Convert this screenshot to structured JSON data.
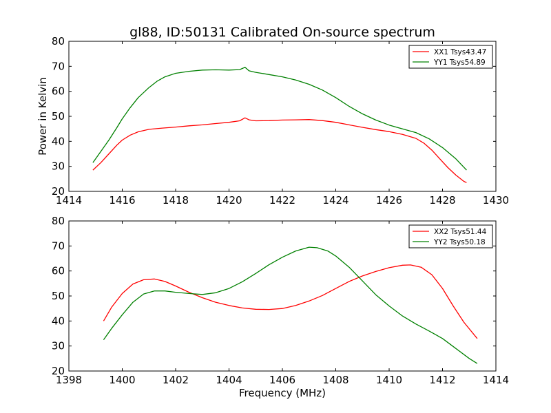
{
  "figure": {
    "title": "gl88, ID:50131 Calibrated On-source spectrum"
  },
  "chart_data": [
    {
      "type": "line",
      "title": "gl88, ID:50131 Calibrated On-source spectrum",
      "xlabel": "",
      "ylabel": "Power in Kelvin",
      "xlim": [
        1414,
        1430
      ],
      "ylim": [
        20,
        80
      ],
      "xticks": [
        1414,
        1416,
        1418,
        1420,
        1422,
        1424,
        1426,
        1428,
        1430
      ],
      "yticks": [
        20,
        30,
        40,
        50,
        60,
        70,
        80
      ],
      "grid": false,
      "legend_position": "upper right",
      "series": [
        {
          "name": "XX1 Tsys43.47",
          "color": "#ff0000",
          "x": [
            1414.9,
            1415.2,
            1415.5,
            1415.8,
            1416.0,
            1416.3,
            1416.6,
            1417.0,
            1417.5,
            1418.0,
            1418.5,
            1419.0,
            1419.5,
            1420.0,
            1420.4,
            1420.6,
            1420.75,
            1421.0,
            1421.5,
            1422.0,
            1422.5,
            1423.0,
            1423.5,
            1424.0,
            1424.5,
            1425.0,
            1425.5,
            1426.0,
            1426.5,
            1427.0,
            1427.3,
            1427.6,
            1427.9,
            1428.2,
            1428.5,
            1428.8,
            1428.9
          ],
          "y": [
            28.5,
            31.5,
            35.0,
            38.5,
            40.5,
            42.5,
            43.8,
            44.8,
            45.3,
            45.7,
            46.2,
            46.6,
            47.1,
            47.6,
            48.2,
            49.4,
            48.6,
            48.2,
            48.3,
            48.5,
            48.6,
            48.7,
            48.3,
            47.6,
            46.6,
            45.6,
            44.7,
            43.9,
            42.8,
            41.2,
            39.3,
            36.5,
            33.0,
            29.5,
            26.5,
            24.0,
            23.5
          ]
        },
        {
          "name": "YY1 Tsys54.89",
          "color": "#008000",
          "x": [
            1414.9,
            1415.2,
            1415.5,
            1415.8,
            1416.0,
            1416.3,
            1416.6,
            1417.0,
            1417.3,
            1417.6,
            1418.0,
            1418.5,
            1419.0,
            1419.5,
            1420.0,
            1420.4,
            1420.6,
            1420.75,
            1421.0,
            1421.5,
            1422.0,
            1422.5,
            1423.0,
            1423.5,
            1424.0,
            1424.5,
            1425.0,
            1425.5,
            1426.0,
            1426.5,
            1427.0,
            1427.5,
            1428.0,
            1428.5,
            1428.9
          ],
          "y": [
            31.5,
            36.0,
            40.5,
            45.5,
            49.0,
            53.5,
            57.5,
            61.5,
            64.0,
            65.8,
            67.2,
            68.0,
            68.5,
            68.6,
            68.5,
            68.7,
            69.6,
            68.2,
            67.6,
            66.7,
            65.8,
            64.5,
            62.8,
            60.5,
            57.5,
            54.0,
            51.0,
            48.5,
            46.5,
            45.0,
            43.5,
            41.0,
            37.5,
            33.0,
            28.5
          ]
        }
      ]
    },
    {
      "type": "line",
      "title": "",
      "xlabel": "Frequency (MHz)",
      "ylabel": "",
      "xlim": [
        1398,
        1414
      ],
      "ylim": [
        20,
        80
      ],
      "xticks": [
        1398,
        1400,
        1402,
        1404,
        1406,
        1408,
        1410,
        1412,
        1414
      ],
      "yticks": [
        20,
        30,
        40,
        50,
        60,
        70,
        80
      ],
      "grid": false,
      "legend_position": "upper right",
      "series": [
        {
          "name": "XX2 Tsys51.44",
          "color": "#ff0000",
          "x": [
            1399.3,
            1399.6,
            1400.0,
            1400.4,
            1400.8,
            1401.2,
            1401.6,
            1402.0,
            1402.5,
            1403.0,
            1403.5,
            1404.0,
            1404.5,
            1405.0,
            1405.5,
            1406.0,
            1406.5,
            1407.0,
            1407.5,
            1408.0,
            1408.5,
            1409.0,
            1409.5,
            1410.0,
            1410.5,
            1410.8,
            1411.2,
            1411.6,
            1412.0,
            1412.4,
            1412.8,
            1413.3
          ],
          "y": [
            40.0,
            45.5,
            51.0,
            54.8,
            56.5,
            56.8,
            55.8,
            54.0,
            51.5,
            49.3,
            47.5,
            46.2,
            45.2,
            44.7,
            44.6,
            45.0,
            46.2,
            48.0,
            50.2,
            53.0,
            55.8,
            58.0,
            59.8,
            61.3,
            62.3,
            62.4,
            61.5,
            58.5,
            53.0,
            46.0,
            39.5,
            33.0
          ]
        },
        {
          "name": "YY2 Tsys50.18",
          "color": "#008000",
          "x": [
            1399.3,
            1399.6,
            1400.0,
            1400.4,
            1400.8,
            1401.2,
            1401.6,
            1402.0,
            1402.5,
            1403.0,
            1403.5,
            1404.0,
            1404.5,
            1405.0,
            1405.5,
            1406.0,
            1406.5,
            1407.0,
            1407.3,
            1407.7,
            1408.0,
            1408.5,
            1409.0,
            1409.5,
            1410.0,
            1410.5,
            1411.0,
            1411.5,
            1412.0,
            1412.5,
            1413.0,
            1413.3
          ],
          "y": [
            32.5,
            37.0,
            42.5,
            47.5,
            50.8,
            52.0,
            52.0,
            51.5,
            51.0,
            50.6,
            51.3,
            53.0,
            55.7,
            59.0,
            62.5,
            65.5,
            68.0,
            69.5,
            69.3,
            68.0,
            66.0,
            61.5,
            56.0,
            50.5,
            46.0,
            42.0,
            38.8,
            36.0,
            33.0,
            29.0,
            25.0,
            23.0
          ]
        }
      ]
    }
  ]
}
